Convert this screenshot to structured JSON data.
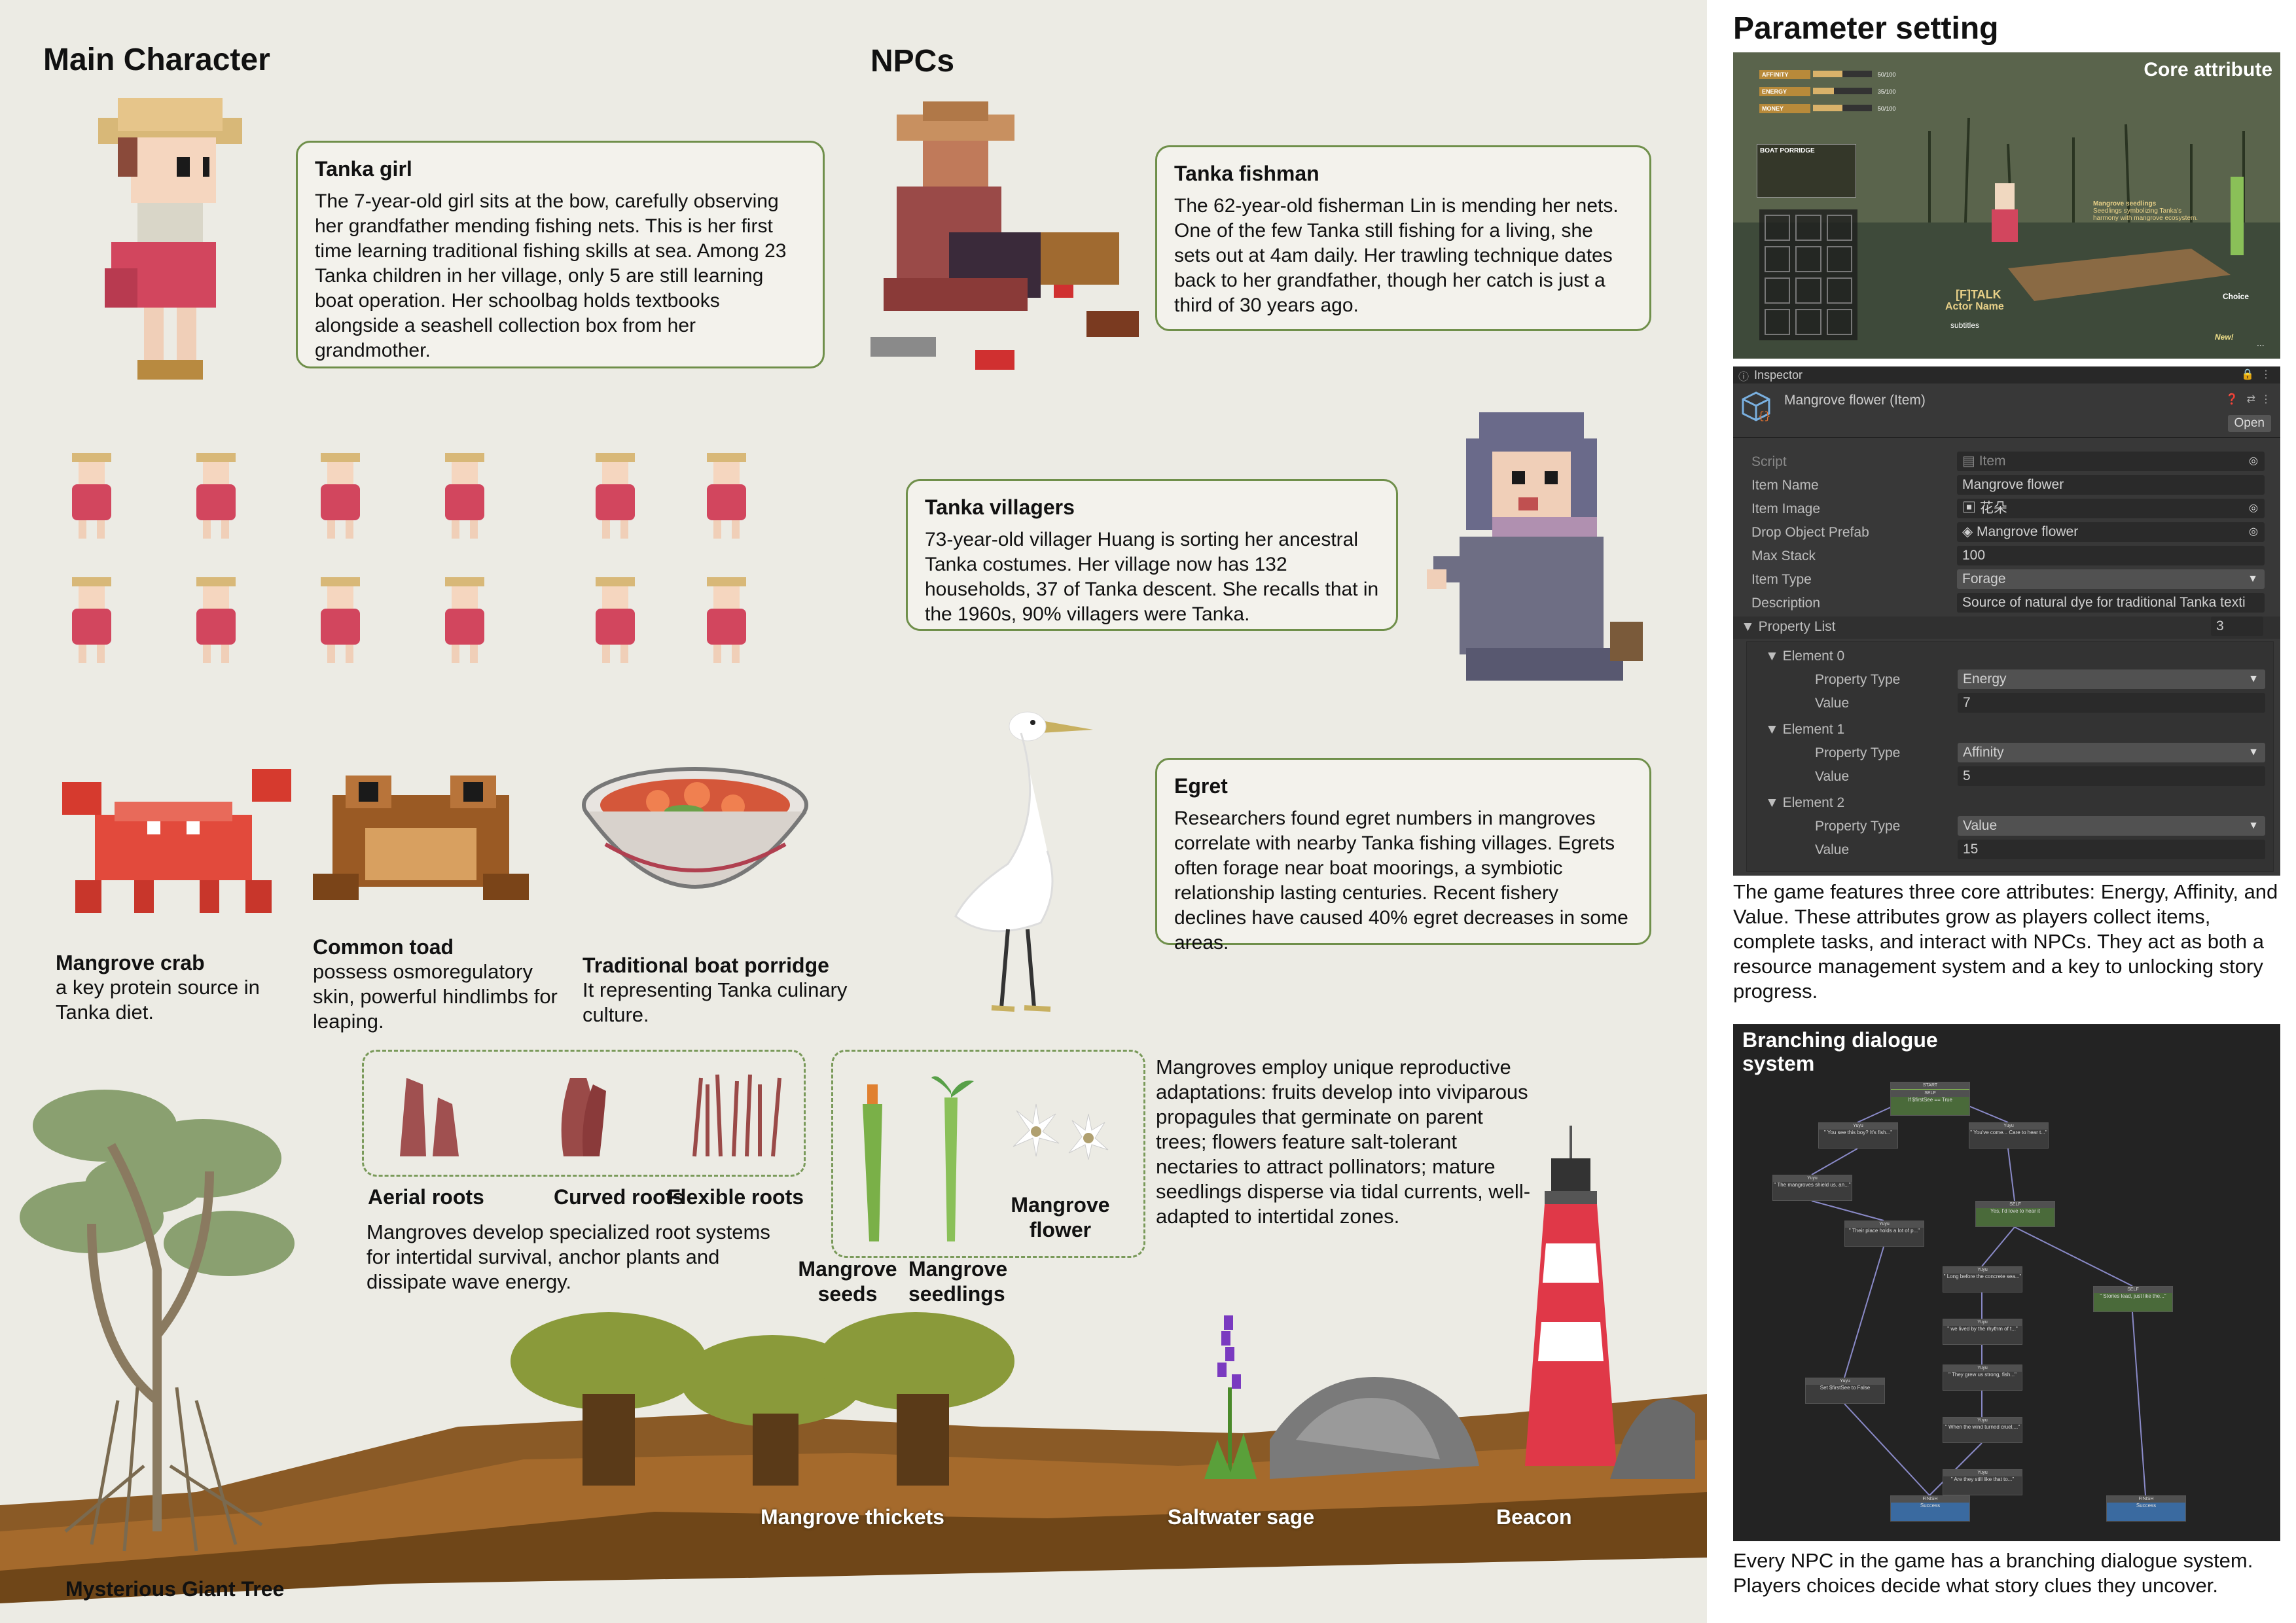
{
  "headings": {
    "main_character": "Main Character",
    "npcs": "NPCs",
    "parameter_setting": "Parameter setting"
  },
  "cards": {
    "tanka_girl": {
      "title": "Tanka girl",
      "body": "The 7-year-old girl sits at the bow, carefully observing her grandfather mending fishing nets. This is her first time learning traditional fishing skills at sea. Among 23 Tanka children in her village, only 5 are still learning boat operation. Her schoolbag holds textbooks alongside a seashell collection box from her grandmother."
    },
    "tanka_fishman": {
      "title": "Tanka fishman",
      "body": "The 62-year-old fisherman Lin is mending her nets. One of the few Tanka still fishing for a living, she sets out at 4am daily. Her trawling technique dates back to her grandfather, though her catch is just a third of 30 years ago."
    },
    "tanka_villagers": {
      "title": "Tanka villagers",
      "body": "73-year-old villager Huang is sorting her ancestral Tanka costumes. Her village now has 132 households, 37 of Tanka descent. She recalls that in the 1960s, 90% villagers were Tanka."
    },
    "egret": {
      "title": "Egret",
      "body": "Researchers found egret numbers in mangroves correlate with nearby Tanka fishing villages. Egrets often forage near boat moorings, a symbiotic relationship lasting centuries. Recent fishery declines have caused 40% egret decreases in some areas."
    }
  },
  "creatures": {
    "crab": {
      "name": "Mangrove crab",
      "desc": "a key protein source in Tanka diet."
    },
    "toad": {
      "name": "Common toad",
      "desc": "possess osmoregulatory skin, powerful hindlimbs for leaping."
    },
    "porridge": {
      "name": "Traditional boat porridge",
      "desc": "It representing Tanka culinary culture."
    }
  },
  "roots": {
    "labels": [
      "Aerial roots",
      "Curved roots",
      "Flexible roots"
    ],
    "desc": "Mangroves develop specialized root systems for intertidal survival, anchor plants and dissipate wave energy."
  },
  "seeds": {
    "seeds_label": "Mangrove seeds",
    "seedlings_label": "Mangrove seedlings",
    "flower_label": "Mangrove flower",
    "desc": "Mangroves employ unique reproductive adaptations: fruits develop into viviparous propagules that germinate on parent trees; flowers feature salt-tolerant nectaries to attract pollinators; mature seedlings disperse via tidal currents, well-adapted to intertidal zones."
  },
  "landscape": {
    "giant_tree": "Mysterious Giant Tree",
    "thickets": "Mangrove thickets",
    "sage": "Saltwater sage",
    "beacon": "Beacon"
  },
  "game_screen": {
    "core_attribute": "Core attribute",
    "bars": [
      {
        "label": "AFFINITY",
        "value": "50/100",
        "fill": 0.5,
        "color": "#d9b26a"
      },
      {
        "label": "ENERGY",
        "value": "35/100",
        "fill": 0.35,
        "color": "#d9b26a"
      },
      {
        "label": "MONEY",
        "value": "50/100",
        "fill": 0.5,
        "color": "#d9b26a"
      }
    ],
    "inventory_title": "BOAT PORRIDGE",
    "talk": "[F]TALK",
    "actor_name": "Actor Name",
    "subtitles": "subtitles",
    "choice": "Choice",
    "new_badge": "New!",
    "seedling_title": "Mangrove seedlings",
    "seedling_desc": "Seedlings symbolizing Tanka's harmony with mangrove ecosystem.",
    "more": "..."
  },
  "inspector": {
    "tab": "Inspector",
    "object_title": "Mangrove flower (Item)",
    "open_button": "Open",
    "rows": [
      {
        "label": "Script",
        "value": "Item",
        "kind": "ref",
        "indent": 0
      },
      {
        "label": "Item Name",
        "value": "Mangrove flower",
        "kind": "text",
        "indent": 0
      },
      {
        "label": "Item Image",
        "value": "花朵",
        "kind": "ref",
        "indent": 0
      },
      {
        "label": "Drop Object Prefab",
        "value": "Mangrove flower",
        "kind": "ref",
        "indent": 0
      },
      {
        "label": "Max Stack",
        "value": "100",
        "kind": "text",
        "indent": 0
      },
      {
        "label": "Item Type",
        "value": "Forage",
        "kind": "drop",
        "indent": 0
      },
      {
        "label": "Description",
        "value": "Source of natural dye for traditional Tanka texti",
        "kind": "text",
        "indent": 0
      }
    ],
    "property_list_label": "Property List",
    "property_list_count": "3",
    "elements": [
      {
        "name": "Element 0",
        "type_label": "Property Type",
        "type_value": "Energy",
        "value_label": "Value",
        "value": "7"
      },
      {
        "name": "Element 1",
        "type_label": "Property Type",
        "type_value": "Affinity",
        "value_label": "Value",
        "value": "5"
      },
      {
        "name": "Element 2",
        "type_label": "Property Type",
        "type_value": "Value",
        "value_label": "Value",
        "value": "15"
      }
    ]
  },
  "attributes_text": "The game features three core attributes: Energy, Affinity, and Value. These attributes grow as players collect items, complete tasks, and interact with NPCs. They act as both a resource management system and a key to unlocking story progress.",
  "dialogue": {
    "title": "Branching dialogue system",
    "caption": "Every NPC in the game has a branching dialogue system. Players choices decide what story clues they uncover.",
    "nodes": [
      {
        "title": "START",
        "text": ""
      },
      {
        "title": "SELF",
        "text": "If $firstSee == True"
      },
      {
        "title": "Yuyu",
        "text": "\" You see this boy? It's fish...\""
      },
      {
        "title": "Yuyu",
        "text": "\" You've come... Care to hear t...\""
      },
      {
        "title": "Yuyu",
        "text": "\" The mangroves shield us, an...\""
      },
      {
        "title": "SELF",
        "text": "Yes, I'd love to hear it"
      },
      {
        "title": "Yuyu",
        "text": "\" Their place holds a lot of p...\""
      },
      {
        "title": "Yuyu",
        "text": "\" Long before the concrete sea...\""
      },
      {
        "title": "SELF",
        "text": "\" Stories lead, just like the...\""
      },
      {
        "title": "Yuyu",
        "text": "\" we lived by the rhythm of t...\""
      },
      {
        "title": "Yuyu",
        "text": "\" They grew us strong, fish...\""
      },
      {
        "title": "Yuyu",
        "text": "\" When the wind turned cruel,...\""
      },
      {
        "title": "Yuyu",
        "text": "Set $firstSee to False"
      },
      {
        "title": "Yuyu",
        "text": "\" Are they still like that to...\""
      },
      {
        "title": "FINISH",
        "text": "Success"
      },
      {
        "title": "FINISH",
        "text": "Success"
      }
    ]
  }
}
